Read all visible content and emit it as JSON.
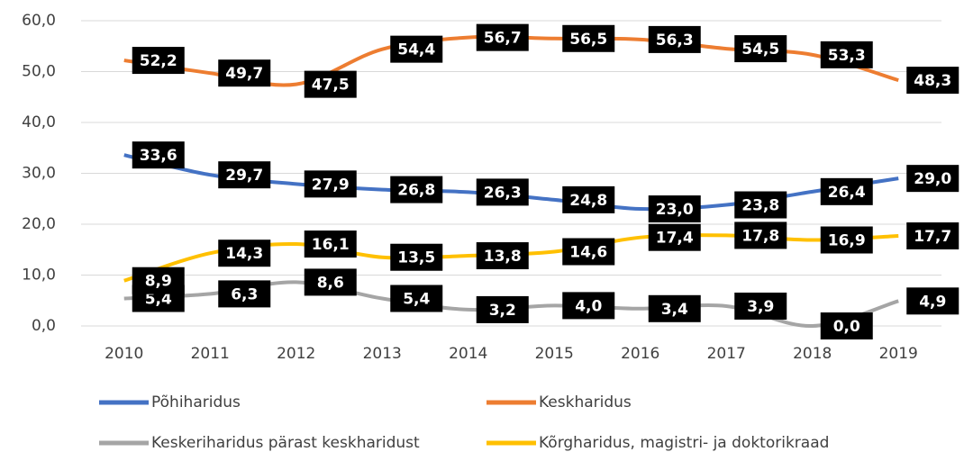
{
  "chart_data": {
    "type": "line",
    "categories": [
      "2010",
      "2011",
      "2012",
      "2013",
      "2014",
      "2015",
      "2016",
      "2017",
      "2018",
      "2019"
    ],
    "ylim": [
      0,
      60
    ],
    "yticks": [
      {
        "value": 0,
        "label": "0,0"
      },
      {
        "value": 10,
        "label": "10,0"
      },
      {
        "value": 20,
        "label": "20,0"
      },
      {
        "value": 30,
        "label": "30,0"
      },
      {
        "value": 40,
        "label": "40,0"
      },
      {
        "value": 50,
        "label": "50,0"
      },
      {
        "value": 60,
        "label": "60,0"
      }
    ],
    "grid": true,
    "legend": "bottom",
    "series": [
      {
        "name": "Põhiharidus",
        "color": "#4472c4",
        "values": [
          33.6,
          29.7,
          27.9,
          26.8,
          26.3,
          24.8,
          23.0,
          23.8,
          26.4,
          29.0
        ],
        "value_labels": [
          "33,6",
          "29,7",
          "27,9",
          "26,8",
          "26,3",
          "24,8",
          "23,0",
          "23,8",
          "26,4",
          "29,0"
        ]
      },
      {
        "name": "Keskharidus",
        "color": "#ed7d31",
        "values": [
          52.2,
          49.7,
          47.5,
          54.4,
          56.7,
          56.5,
          56.3,
          54.5,
          53.3,
          48.3
        ],
        "value_labels": [
          "52,2",
          "49,7",
          "47,5",
          "54,4",
          "56,7",
          "56,5",
          "56,3",
          "54,5",
          "53,3",
          "48,3"
        ]
      },
      {
        "name": "Keskeriharidus pärast keskharidust",
        "color": "#a5a5a5",
        "values": [
          5.4,
          6.3,
          8.6,
          5.4,
          3.2,
          4.0,
          3.4,
          3.9,
          0.0,
          4.9
        ],
        "value_labels": [
          "5,4",
          "6,3",
          "8,6",
          "5,4",
          "3,2",
          "4,0",
          "3,4",
          "3,9",
          "0,0",
          "4,9"
        ]
      },
      {
        "name": "Kõrgharidus, magistri- ja doktorikraad",
        "color": "#ffc000",
        "values": [
          8.9,
          14.3,
          16.1,
          13.5,
          13.8,
          14.6,
          17.4,
          17.8,
          16.9,
          17.7
        ],
        "value_labels": [
          "8,9",
          "14,3",
          "16,1",
          "13,5",
          "13,8",
          "14,6",
          "17,4",
          "17,8",
          "16,9",
          "17,7"
        ]
      }
    ]
  }
}
